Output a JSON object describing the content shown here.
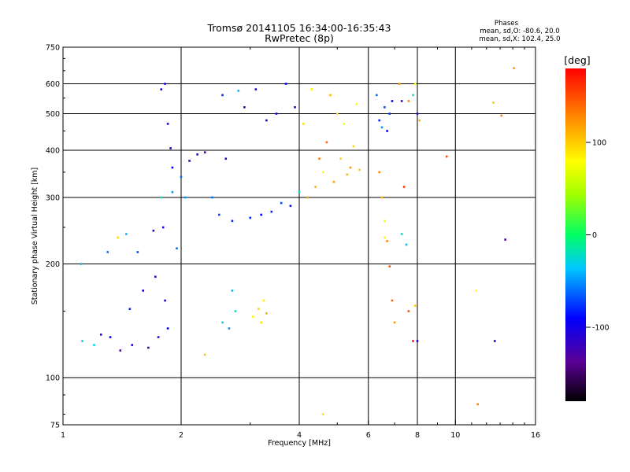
{
  "chart_data": {
    "type": "scatter",
    "title": "Tromsø 20141105 16:34:00-16:35:43",
    "subtitle": "RwPretec (8p)",
    "xlabel": "Frequency [MHz]",
    "ylabel": "Stationary phase Virtual Height [km]",
    "x_scale": "log",
    "y_scale": "log",
    "xlim": [
      1,
      16
    ],
    "ylim": [
      75,
      750
    ],
    "x_ticks": [
      1,
      2,
      4,
      6,
      8,
      10,
      16
    ],
    "x_tick_labels": [
      "1",
      "2",
      "4",
      "6",
      "8",
      "10",
      "16"
    ],
    "y_ticks": [
      75,
      100,
      200,
      300,
      400,
      500,
      600,
      750
    ],
    "y_tick_labels": [
      "75",
      "100",
      "200",
      "300",
      "400",
      "500",
      "600",
      "750"
    ],
    "x_gridlines": [
      2,
      4,
      6,
      8,
      10
    ],
    "y_gridlines": [
      100,
      200,
      300,
      400,
      500,
      600
    ],
    "stats": {
      "heading": "Phases",
      "line_o": "mean, sd,O: -80.6, 20.0",
      "line_x": "mean, sd,X: 102.4, 25.0"
    },
    "colorbar": {
      "label": "[deg]",
      "range": [
        -180,
        180
      ],
      "ticks": [
        100,
        0,
        -100
      ],
      "tick_labels": [
        "100",
        "0",
        "-100"
      ],
      "colormap": "rainbow"
    },
    "series": [
      {
        "trace": "left-stack",
        "points": [
          [
            1.11,
            200,
            -40
          ],
          [
            1.12,
            125,
            -30
          ],
          [
            1.2,
            122,
            -30
          ],
          [
            1.25,
            130,
            -115
          ],
          [
            1.3,
            215,
            -60
          ],
          [
            1.32,
            128,
            -90
          ],
          [
            1.38,
            235,
            95
          ],
          [
            1.4,
            118,
            -130
          ],
          [
            1.45,
            240,
            -40
          ],
          [
            1.48,
            152,
            -80
          ],
          [
            1.5,
            122,
            -110
          ],
          [
            1.55,
            215,
            -70
          ],
          [
            1.6,
            170,
            -105
          ],
          [
            1.65,
            120,
            -115
          ],
          [
            1.7,
            245,
            -115
          ],
          [
            1.72,
            185,
            -120
          ],
          [
            1.75,
            128,
            -110
          ],
          [
            1.78,
            300,
            -20
          ],
          [
            1.8,
            250,
            -100
          ],
          [
            1.82,
            160,
            -115
          ],
          [
            1.85,
            135,
            -90
          ],
          [
            1.9,
            310,
            -50
          ],
          [
            1.95,
            220,
            -60
          ]
        ]
      },
      {
        "trace": "f-region-trace",
        "points": [
          [
            1.78,
            580,
            -110
          ],
          [
            1.82,
            600,
            -100
          ],
          [
            1.85,
            470,
            -115
          ],
          [
            1.88,
            405,
            -110
          ],
          [
            1.9,
            360,
            -90
          ],
          [
            2.0,
            340,
            -60
          ],
          [
            2.05,
            300,
            -50
          ],
          [
            2.1,
            375,
            -120
          ],
          [
            2.2,
            390,
            -115
          ],
          [
            2.3,
            395,
            -130
          ],
          [
            2.4,
            300,
            -60
          ],
          [
            2.5,
            270,
            -70
          ],
          [
            2.55,
            560,
            -80
          ],
          [
            2.6,
            380,
            -120
          ],
          [
            2.7,
            260,
            -80
          ],
          [
            2.8,
            575,
            -40
          ],
          [
            2.9,
            520,
            -110
          ],
          [
            3.0,
            265,
            -80
          ],
          [
            3.1,
            580,
            -100
          ],
          [
            3.2,
            270,
            -90
          ],
          [
            3.3,
            480,
            -110
          ],
          [
            3.4,
            275,
            -80
          ],
          [
            3.5,
            500,
            -100
          ],
          [
            3.6,
            290,
            -70
          ],
          [
            3.7,
            600,
            -90
          ],
          [
            3.8,
            285,
            -90
          ],
          [
            3.9,
            520,
            -100
          ],
          [
            4.0,
            310,
            -20
          ],
          [
            4.1,
            470,
            90
          ],
          [
            4.2,
            300,
            120
          ],
          [
            4.3,
            580,
            80
          ],
          [
            4.4,
            320,
            110
          ],
          [
            4.5,
            380,
            130
          ],
          [
            4.6,
            350,
            80
          ],
          [
            4.7,
            420,
            140
          ],
          [
            4.8,
            560,
            110
          ],
          [
            4.9,
            330,
            120
          ],
          [
            5.0,
            500,
            90
          ],
          [
            5.1,
            380,
            95
          ],
          [
            5.2,
            470,
            75
          ],
          [
            5.3,
            345,
            110
          ],
          [
            5.4,
            360,
            120
          ],
          [
            5.5,
            410,
            95
          ],
          [
            5.6,
            530,
            80
          ],
          [
            5.7,
            355,
            100
          ]
        ]
      },
      {
        "trace": "cusp-low",
        "points": [
          [
            2.55,
            140,
            -30
          ],
          [
            2.65,
            135,
            -50
          ],
          [
            2.7,
            170,
            -40
          ],
          [
            2.75,
            150,
            -20
          ],
          [
            3.05,
            145,
            80
          ],
          [
            3.15,
            152,
            95
          ],
          [
            3.2,
            140,
            90
          ],
          [
            3.25,
            160,
            85
          ],
          [
            3.3,
            148,
            110
          ],
          [
            2.3,
            115,
            100
          ]
        ]
      },
      {
        "trace": "x-mode-high",
        "points": [
          [
            6.3,
            560,
            -60
          ],
          [
            6.4,
            480,
            -80
          ],
          [
            6.5,
            460,
            -50
          ],
          [
            6.6,
            520,
            -70
          ],
          [
            6.7,
            450,
            -90
          ],
          [
            6.8,
            500,
            -80
          ],
          [
            6.9,
            540,
            -100
          ],
          [
            7.2,
            600,
            120
          ],
          [
            7.3,
            540,
            -130
          ],
          [
            7.6,
            540,
            130
          ],
          [
            7.8,
            560,
            -20
          ],
          [
            7.9,
            600,
            80
          ],
          [
            8.0,
            500,
            -110
          ],
          [
            8.1,
            480,
            110
          ]
        ]
      },
      {
        "trace": "sparse",
        "points": [
          [
            6.4,
            350,
            130
          ],
          [
            6.5,
            300,
            110
          ],
          [
            6.6,
            260,
            80
          ],
          [
            6.6,
            235,
            80
          ],
          [
            6.7,
            230,
            130
          ],
          [
            6.8,
            197,
            150
          ],
          [
            6.9,
            160,
            140
          ],
          [
            7.0,
            140,
            120
          ],
          [
            7.3,
            240,
            -20
          ],
          [
            7.4,
            320,
            160
          ],
          [
            7.5,
            225,
            -40
          ],
          [
            7.6,
            150,
            150
          ],
          [
            7.8,
            125,
            170
          ],
          [
            7.9,
            155,
            100
          ],
          [
            8.0,
            125,
            -100
          ],
          [
            9.5,
            385,
            150
          ],
          [
            11.3,
            170,
            80
          ],
          [
            11.4,
            85,
            130
          ],
          [
            12.5,
            535,
            100
          ],
          [
            12.6,
            125,
            -110
          ],
          [
            13.1,
            494,
            130
          ],
          [
            13.4,
            232,
            -130
          ],
          [
            14.1,
            660,
            120
          ],
          [
            4.6,
            80,
            90
          ]
        ]
      }
    ]
  }
}
